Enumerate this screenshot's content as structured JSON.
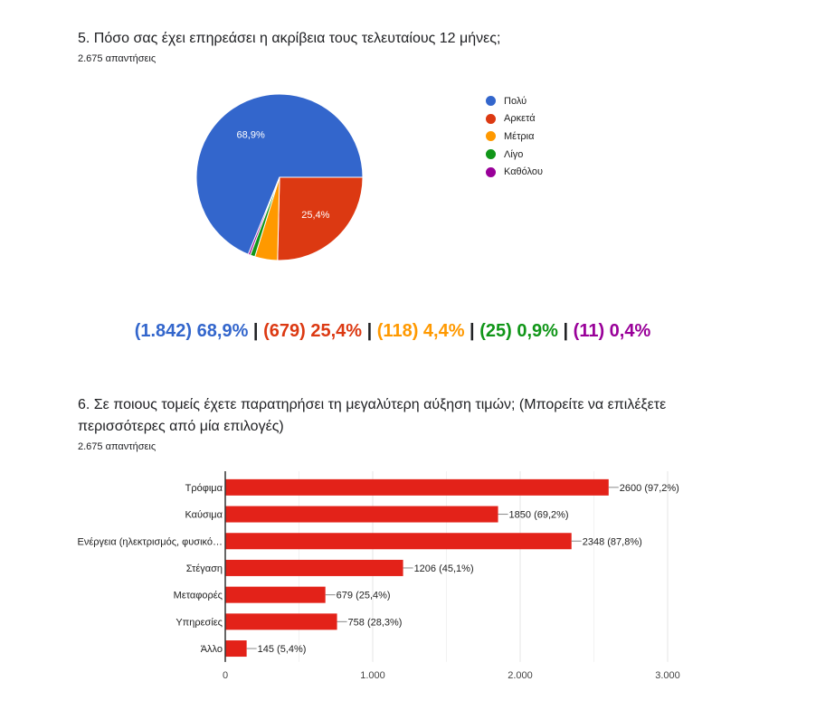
{
  "q5": {
    "title": "5. Πόσο σας έχει επηρεάσει η ακρίβεια τους τελευταίους 12 μήνες;",
    "responses": "2.675 απαντήσεις"
  },
  "q6": {
    "title_line1": "6. Σε ποιους τομείς έχετε παρατηρήσει τη μεγαλύτερη αύξηση τιμών; (Μπορείτε να επιλέξετε",
    "title_line2": "περισσότερες από μία επιλογές)",
    "responses": "2.675 απαντήσεις"
  },
  "summary": [
    {
      "text": "(1.842) 68,9%",
      "color": "#3366cc"
    },
    {
      "text": "(679) 25,4%",
      "color": "#dc3912"
    },
    {
      "text": "(118) 4,4%",
      "color": "#ff9900"
    },
    {
      "text": "(25) 0,9%",
      "color": "#109618"
    },
    {
      "text": "(11) 0,4%",
      "color": "#990099"
    }
  ],
  "summary_separator": "|",
  "chart_data": [
    {
      "type": "pie",
      "categories": [
        "Πολύ",
        "Αρκετά",
        "Μέτρια",
        "Λίγο",
        "Καθόλου"
      ],
      "values": [
        1842,
        679,
        118,
        25,
        11
      ],
      "slice_labels": [
        "68,9%",
        "25,4%",
        "",
        "",
        ""
      ],
      "colors": [
        "#3366cc",
        "#dc3912",
        "#ff9900",
        "#109618",
        "#990099"
      ],
      "legend": "right"
    },
    {
      "type": "bar",
      "orientation": "horizontal",
      "categories": [
        "Τρόφιμα",
        "Καύσιμα",
        "Ενέργεια (ηλεκτρισμός, φυσικό…",
        "Στέγαση",
        "Μεταφορές",
        "Υπηρεσίες",
        "Άλλο"
      ],
      "values": [
        2600,
        1850,
        2348,
        1206,
        679,
        758,
        145
      ],
      "data_labels": [
        "2600 (97,2%)",
        "1850 (69,2%)",
        "2348 (87,8%)",
        "1206 (45,1%)",
        "679 (25,4%)",
        "758 (28,3%)",
        "145 (5,4%)"
      ],
      "xlim": [
        0,
        3000
      ],
      "xticks": [
        0,
        1000,
        2000,
        3000
      ],
      "xtick_labels": [
        "0",
        "1.000",
        "2.000",
        "3.000"
      ],
      "color": "#e32219",
      "grid": true
    }
  ]
}
